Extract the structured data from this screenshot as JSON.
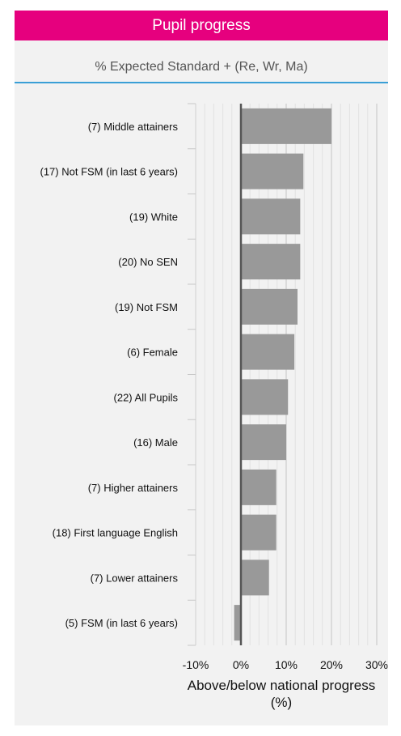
{
  "header": {
    "title": "Pupil progress"
  },
  "chart_data": {
    "type": "bar",
    "orientation": "horizontal",
    "title": "% Expected Standard + (Re, Wr, Ma)",
    "xlabel": "Above/below national progress (%)",
    "ylabel": "",
    "categories": [
      "(7) Middle attainers",
      "(17) Not FSM (in last 6 years)",
      "(19) White",
      "(20) No SEN",
      "(19) Not FSM",
      "(6) Female",
      "(22) All Pupils",
      "(16) Male",
      "(7) Higher attainers",
      "(18) First language English",
      "(7) Lower attainers",
      "(5) FSM (in last 6 years)"
    ],
    "values": [
      20.0,
      13.8,
      13.1,
      13.1,
      12.5,
      11.8,
      10.4,
      10.0,
      7.8,
      7.8,
      6.2,
      -1.5
    ],
    "xlim": [
      -10,
      30
    ],
    "xticks": [
      "-10%",
      "0%",
      "10%",
      "20%",
      "30%"
    ],
    "bar_color": "#999999",
    "grid": true
  }
}
